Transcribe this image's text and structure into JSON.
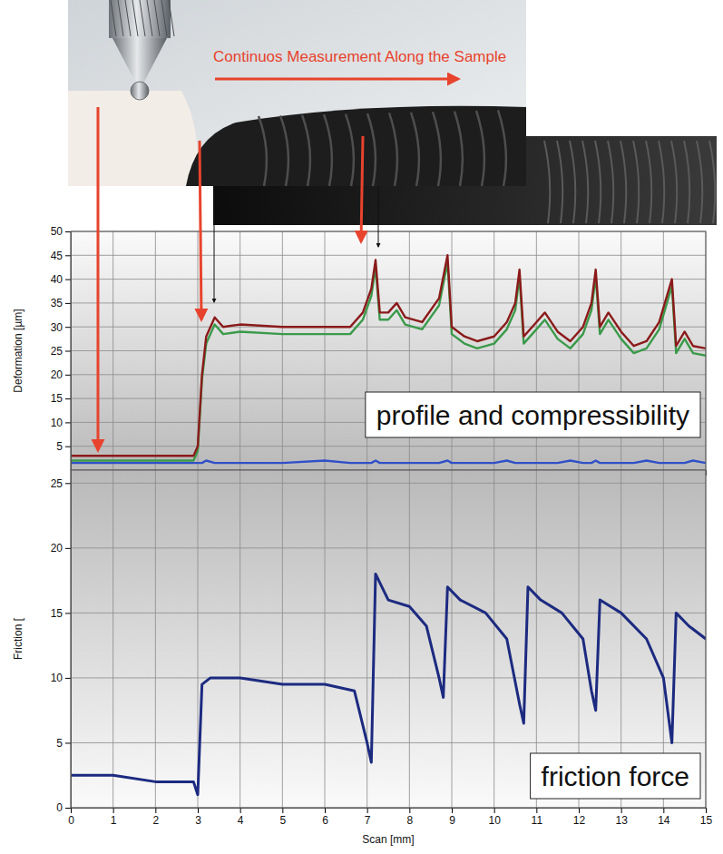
{
  "photo_caption": "Continuos Measurement Along the Sample",
  "chart_data": [
    {
      "type": "line",
      "y_label": "Deformation [µm]",
      "annotation": "profile and compressibility",
      "x": [
        0,
        1,
        2,
        2.9,
        3.0,
        3.1,
        3.2,
        3.4,
        3.6,
        4,
        5,
        6,
        6.6,
        6.9,
        7.1,
        7.2,
        7.3,
        7.5,
        7.7,
        7.9,
        8.3,
        8.7,
        8.9,
        9.0,
        9.3,
        9.6,
        10,
        10.3,
        10.5,
        10.6,
        10.7,
        11.0,
        11.2,
        11.5,
        11.8,
        12.1,
        12.3,
        12.4,
        12.5,
        12.7,
        13,
        13.3,
        13.6,
        13.9,
        14.2,
        14.3,
        14.5,
        14.7,
        15
      ],
      "series": [
        {
          "color": "#3a9a4a",
          "values": [
            2,
            2,
            2,
            2,
            4,
            19,
            26.5,
            30.5,
            28.5,
            29,
            28.5,
            28.5,
            28.5,
            31.5,
            36.5,
            42.5,
            31.5,
            31.5,
            33.5,
            30.5,
            29.5,
            34.5,
            43.5,
            28.5,
            26.5,
            25.5,
            26.5,
            29.5,
            33.5,
            40.5,
            26.5,
            29.5,
            31.5,
            27.5,
            25.5,
            28.5,
            33.5,
            40.5,
            28.5,
            31.5,
            27.5,
            24.5,
            25.5,
            29.5,
            38.5,
            24.5,
            27.5,
            24.5,
            24
          ]
        },
        {
          "color": "#8b1a1a",
          "values": [
            3,
            3,
            3,
            3,
            5,
            20,
            28,
            32,
            30,
            30.5,
            30,
            30,
            30,
            33,
            38,
            44,
            33,
            33,
            35,
            32,
            31,
            36,
            45,
            30,
            28,
            27,
            28,
            31,
            35,
            42,
            28,
            31,
            33,
            29,
            27,
            30,
            35,
            42,
            30,
            33,
            29,
            26,
            27,
            31,
            40,
            26,
            29,
            26,
            25.5
          ]
        },
        {
          "color": "#3050c8",
          "values": [
            1.5,
            1.5,
            1.5,
            1.5,
            1.5,
            1.5,
            2,
            1.5,
            1.5,
            1.5,
            1.5,
            2,
            1.5,
            1.5,
            1.5,
            2,
            1.5,
            1.5,
            1.5,
            1.5,
            1.5,
            1.5,
            2,
            1.5,
            1.5,
            1.5,
            1.5,
            2,
            1.5,
            1.5,
            1.5,
            1.5,
            1.5,
            1.5,
            2,
            1.5,
            1.5,
            2,
            1.5,
            1.5,
            1.5,
            1.5,
            2,
            1.5,
            1.5,
            1.5,
            1.5,
            2,
            1.5
          ]
        }
      ],
      "xlim": [
        0,
        15
      ],
      "xticks": [
        0,
        1,
        2,
        3,
        4,
        5,
        6,
        7,
        8,
        9,
        10,
        11,
        12,
        13,
        14,
        15
      ],
      "ylim": [
        0,
        50
      ],
      "yticks": [
        5,
        10,
        15,
        20,
        25,
        30,
        35,
        40,
        45,
        50
      ],
      "grid": true,
      "tick_labels": "y"
    },
    {
      "type": "line",
      "x_label": "Scan [mm]",
      "y_label": "Friction [",
      "annotation": "friction force",
      "x": [
        0,
        1,
        2,
        2.9,
        3.0,
        3.1,
        3.3,
        4,
        5,
        6,
        6.7,
        7.0,
        7.1,
        7.2,
        7.5,
        8,
        8.4,
        8.7,
        8.8,
        8.9,
        9.2,
        9.8,
        10.3,
        10.6,
        10.7,
        10.8,
        11.1,
        11.6,
        12.1,
        12.3,
        12.4,
        12.5,
        13,
        13.6,
        14.0,
        14.2,
        14.3,
        14.6,
        15
      ],
      "values": [
        2.5,
        2.5,
        2,
        2,
        1,
        9.5,
        10,
        10,
        9.5,
        9.5,
        9,
        5,
        3.5,
        18,
        16,
        15.5,
        14,
        10,
        8.5,
        17,
        16,
        15,
        13,
        8,
        6.5,
        17,
        16,
        15,
        13,
        9,
        7.5,
        16,
        15,
        13,
        10,
        5,
        15,
        14,
        13
      ],
      "color": "#1c2a80",
      "xlim": [
        0,
        15
      ],
      "xticks": [
        0,
        1,
        2,
        3,
        4,
        5,
        6,
        7,
        8,
        9,
        10,
        11,
        12,
        13,
        14,
        15
      ],
      "ylim": [
        0,
        26
      ],
      "yticks": [
        0,
        5,
        10,
        15,
        20,
        25
      ],
      "grid": true
    }
  ]
}
